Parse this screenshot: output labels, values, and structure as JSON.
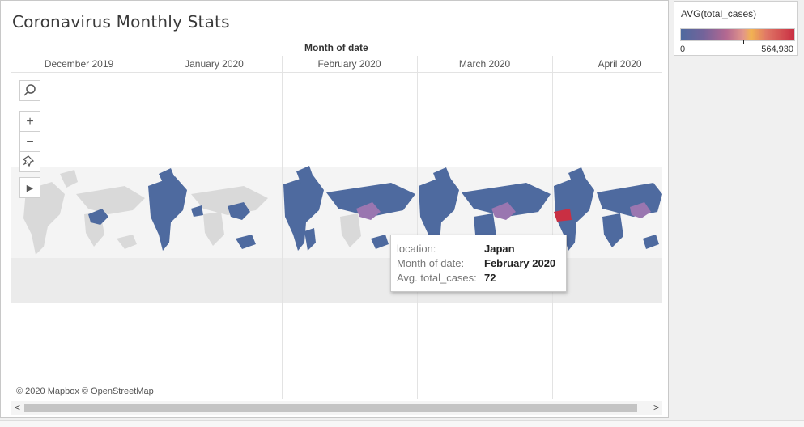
{
  "dashboard": {
    "title": "Coronavirus Monthly Stats",
    "column_header": "Month of date",
    "months": [
      "December 2019",
      "January 2020",
      "February 2020",
      "March 2020",
      "April 2020"
    ],
    "attribution": "© 2020 Mapbox © OpenStreetMap"
  },
  "map_tools": {
    "search_icon": "search-icon",
    "zoom_in_label": "+",
    "zoom_out_label": "−",
    "pin_icon": "pin-icon",
    "expand_label": "▶"
  },
  "tooltip": {
    "location_label": "location:",
    "location_value": "Japan",
    "month_label": "Month of date:",
    "month_value": "February 2020",
    "avg_label": "Avg. total_cases:",
    "avg_value": "72"
  },
  "legend": {
    "title": "AVG(total_cases)",
    "min_label": "0",
    "max_label": "564,930",
    "colors": [
      "#4e6a9f",
      "#b36891",
      "#f2b352",
      "#c92f43"
    ]
  },
  "scrollbar": {
    "left_arrow": "<",
    "right_arrow": ">"
  },
  "colors": {
    "ocean_band": "#ebebeb",
    "land_nodata": "#d9d9d9",
    "land_low": "#4e6a9f",
    "land_mid": "#9a76b0",
    "land_high": "#c92f43"
  }
}
